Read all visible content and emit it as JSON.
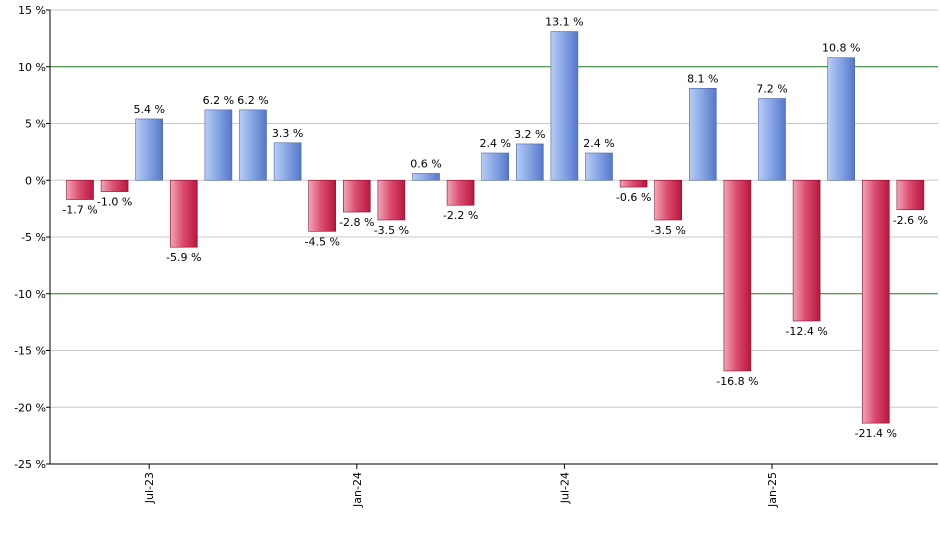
{
  "chart_data": {
    "type": "bar",
    "title": "",
    "xlabel": "",
    "ylabel": "",
    "ylim": [
      -25,
      15
    ],
    "yticks": [
      15,
      10,
      5,
      0,
      -5,
      -10,
      -15,
      -20,
      -25
    ],
    "ytick_labels": [
      "15 %",
      "10 %",
      "5 %",
      "0 %",
      "-5 %",
      "-10 %",
      "-15 %",
      "-20 %",
      "-25 %"
    ],
    "reference_lines": [
      10,
      -10
    ],
    "xtick_labels": [
      {
        "label": "Jul-23",
        "index": 2
      },
      {
        "label": "Jan-24",
        "index": 8
      },
      {
        "label": "Jul-24",
        "index": 14
      },
      {
        "label": "Jan-25",
        "index": 20
      }
    ],
    "values": [
      -1.7,
      -1.0,
      5.4,
      -5.9,
      6.2,
      6.2,
      3.3,
      -4.5,
      -2.8,
      -3.5,
      0.6,
      -2.2,
      2.4,
      3.2,
      13.1,
      2.4,
      -0.6,
      -3.5,
      8.1,
      -16.8,
      7.2,
      -12.4,
      10.8,
      -21.4,
      -2.6
    ],
    "value_labels": [
      "-1.7 %",
      "-1.0 %",
      "5.4 %",
      "-5.9 %",
      "6.2 %",
      "6.2 %",
      "3.3 %",
      "-4.5 %",
      "-2.8 %",
      "-3.5 %",
      "0.6 %",
      "-2.2 %",
      "2.4 %",
      "3.2 %",
      "13.1 %",
      "2.4 %",
      "-0.6 %",
      "-3.5 %",
      "8.1 %",
      "-16.8 %",
      "7.2 %",
      "-12.4 %",
      "10.8 %",
      "-21.4 %",
      "-2.6 %"
    ],
    "colors": {
      "positive_light": "#b8cdf5",
      "positive_dark": "#5577c8",
      "negative_light": "#f2a6b8",
      "negative_dark": "#b8163e",
      "gridline": "#c8c8c8",
      "reference_line": "#1e7a1e",
      "axis": "#000000"
    }
  }
}
